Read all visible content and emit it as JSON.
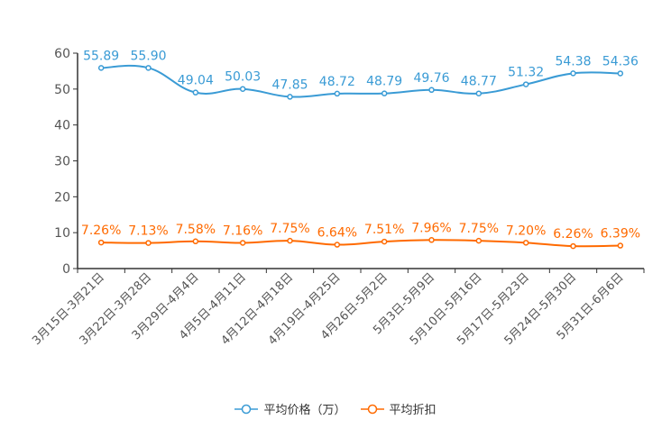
{
  "chart_data": {
    "type": "line",
    "categories": [
      "3月15日-3月21日",
      "3月22日-3月28日",
      "3月29日-4月4日",
      "4月5日-4月11日",
      "4月12日-4月18日",
      "4月19日-4月25日",
      "4月26日-5月2日",
      "5月3日-5月9日",
      "5月10日-5月16日",
      "5月17日-5月23日",
      "5月24日-5月30日",
      "5月31日-6月6日"
    ],
    "series": [
      {
        "name": "平均价格（万）",
        "color": "#3a9bd5",
        "values": [
          55.89,
          55.9,
          49.04,
          50.03,
          47.85,
          48.72,
          48.79,
          49.76,
          48.77,
          51.32,
          54.38,
          54.36
        ],
        "labels": [
          "55.89",
          "55.90",
          "49.04",
          "50.03",
          "47.85",
          "48.72",
          "48.79",
          "49.76",
          "48.77",
          "51.32",
          "54.38",
          "54.36"
        ]
      },
      {
        "name": "平均折扣",
        "color": "#ff6a00",
        "values": [
          7.26,
          7.13,
          7.58,
          7.16,
          7.75,
          6.64,
          7.51,
          7.96,
          7.75,
          7.2,
          6.26,
          6.39
        ],
        "labels": [
          "7.26%",
          "7.13%",
          "7.58%",
          "7.16%",
          "7.75%",
          "6.64%",
          "7.51%",
          "7.96%",
          "7.75%",
          "7.20%",
          "6.26%",
          "6.39%"
        ]
      }
    ],
    "yticks": [
      "0",
      "10",
      "20",
      "30",
      "40",
      "50",
      "60"
    ],
    "ylim": [
      0,
      60
    ],
    "grid": false,
    "legend_position": "bottom"
  }
}
